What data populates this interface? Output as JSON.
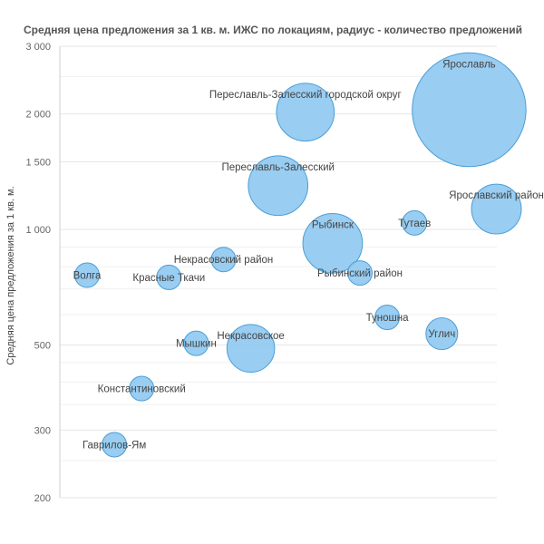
{
  "chart_data": {
    "type": "scatter",
    "subtype": "bubble",
    "title": "Средняя цена предложения за 1 кв. м. ИЖС по локациям, радиус - количество предложений",
    "ylabel": "Средняя цена предложения за 1 кв. м.",
    "xlabel": "",
    "y_scale": "log",
    "ylim": [
      200,
      3000
    ],
    "y_ticks": [
      200,
      300,
      500,
      1000,
      1500,
      2000,
      3000
    ],
    "y_tick_labels": [
      "200",
      "300",
      "500",
      "1 000",
      "1 500",
      "2 000",
      "3 000"
    ],
    "grid": true,
    "legend": "none",
    "colors": {
      "bubble_fill": "#8ec8ef",
      "bubble_stroke": "#4a9fd8",
      "grid": "#e6e6e6",
      "title": "#555555"
    },
    "points": [
      {
        "label": "Волга",
        "rank": 1,
        "y": 760,
        "size": 3
      },
      {
        "label": "Гаврилов-Ям",
        "rank": 2,
        "y": 275,
        "size": 3
      },
      {
        "label": "Константиновский",
        "rank": 3,
        "y": 385,
        "size": 3
      },
      {
        "label": "Красные Ткачи",
        "rank": 4,
        "y": 750,
        "size": 3
      },
      {
        "label": "Мышкин",
        "rank": 5,
        "y": 505,
        "size": 3
      },
      {
        "label": "Некрасовский район",
        "rank": 6,
        "y": 835,
        "size": 3
      },
      {
        "label": "Некрасовское",
        "rank": 7,
        "y": 490,
        "size": 11
      },
      {
        "label": "Переславль-Залесский",
        "rank": 8,
        "y": 1300,
        "size": 17
      },
      {
        "label": "Переславль-Залесский городской округ",
        "rank": 9,
        "y": 2020,
        "size": 16
      },
      {
        "label": "Рыбинск",
        "rank": 10,
        "y": 920,
        "size": 17
      },
      {
        "label": "Рыбинский район",
        "rank": 11,
        "y": 770,
        "size": 3
      },
      {
        "label": "Тунoшна",
        "rank": 12,
        "y": 590,
        "size": 3
      },
      {
        "label": "Тутаев",
        "rank": 13,
        "y": 1040,
        "size": 3
      },
      {
        "label": "Углич",
        "rank": 14,
        "y": 535,
        "size": 5
      },
      {
        "label": "Ярославль",
        "rank": 15,
        "y": 2050,
        "size": 60
      },
      {
        "label": "Ярославский район",
        "rank": 16,
        "y": 1130,
        "size": 12
      }
    ]
  }
}
